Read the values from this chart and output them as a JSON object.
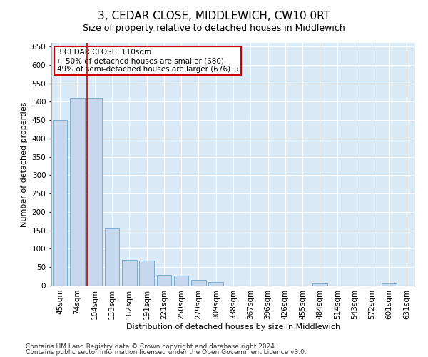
{
  "title": "3, CEDAR CLOSE, MIDDLEWICH, CW10 0RT",
  "subtitle": "Size of property relative to detached houses in Middlewich",
  "xlabel": "Distribution of detached houses by size in Middlewich",
  "ylabel": "Number of detached properties",
  "footnote1": "Contains HM Land Registry data © Crown copyright and database right 2024.",
  "footnote2": "Contains public sector information licensed under the Open Government Licence v3.0.",
  "categories": [
    "45sqm",
    "74sqm",
    "104sqm",
    "133sqm",
    "162sqm",
    "191sqm",
    "221sqm",
    "250sqm",
    "279sqm",
    "309sqm",
    "338sqm",
    "367sqm",
    "396sqm",
    "426sqm",
    "455sqm",
    "484sqm",
    "514sqm",
    "543sqm",
    "572sqm",
    "601sqm",
    "631sqm"
  ],
  "values": [
    450,
    510,
    510,
    155,
    70,
    68,
    30,
    28,
    15,
    10,
    0,
    0,
    0,
    0,
    0,
    5,
    0,
    0,
    0,
    5,
    0
  ],
  "bar_color": "#c5d8ee",
  "bar_edge_color": "#7aadd4",
  "red_line_index": 2,
  "annotation_line1": "3 CEDAR CLOSE: 110sqm",
  "annotation_line2": "← 50% of detached houses are smaller (680)",
  "annotation_line3": "49% of semi-detached houses are larger (676) →",
  "annotation_box_color": "#ffffff",
  "annotation_box_edge_color": "#cc0000",
  "ylim": [
    0,
    660
  ],
  "yticks": [
    0,
    50,
    100,
    150,
    200,
    250,
    300,
    350,
    400,
    450,
    500,
    550,
    600,
    650
  ],
  "bg_color": "#daeaf7",
  "title_fontsize": 11,
  "subtitle_fontsize": 9,
  "axis_label_fontsize": 8,
  "tick_fontsize": 7.5,
  "annotation_fontsize": 7.5,
  "footnote_fontsize": 6.5
}
